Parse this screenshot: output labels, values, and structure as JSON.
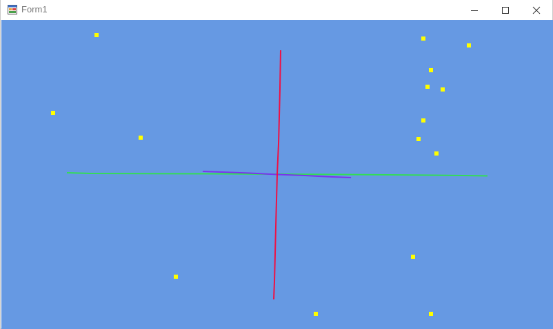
{
  "window": {
    "title": "Form1",
    "icons": {
      "app": "form-app-icon",
      "minimize": "minimize-icon",
      "maximize": "maximize-icon",
      "close": "close-icon"
    }
  },
  "colors": {
    "canvas_background": "#6699e3",
    "x_axis": "#33dd55",
    "y_axis": "#ee1144",
    "z_axis": "#7a33ee",
    "points": "#ffff00"
  }
}
